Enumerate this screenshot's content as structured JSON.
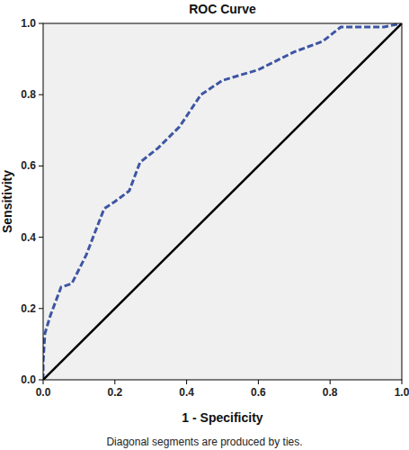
{
  "chart_data": {
    "type": "line",
    "title": "ROC Curve",
    "x_label": "1 - Specificity",
    "y_label": "Sensitivity",
    "note": "Diagonal segments are produced by ties.",
    "xlim": [
      0,
      1
    ],
    "ylim": [
      0,
      1
    ],
    "xticks": [
      {
        "value": 0,
        "label": "0.0"
      },
      {
        "value": 0.2,
        "label": "0.2"
      },
      {
        "value": 0.4,
        "label": "0.4"
      },
      {
        "value": 0.6,
        "label": "0.6"
      },
      {
        "value": 0.8,
        "label": "0.8"
      },
      {
        "value": 1,
        "label": "1.0"
      }
    ],
    "yticks": [
      {
        "value": 0,
        "label": "0.0"
      },
      {
        "value": 0.2,
        "label": "0.2"
      },
      {
        "value": 0.4,
        "label": "0.4"
      },
      {
        "value": 0.6,
        "label": "0.6"
      },
      {
        "value": 0.8,
        "label": "0.8"
      },
      {
        "value": 1,
        "label": "1.0"
      }
    ],
    "grid": false,
    "series": [
      {
        "x": [
          0,
          0,
          0.005,
          0.02,
          0.05,
          0.08,
          0.12,
          0.17,
          0.2,
          0.24,
          0.27,
          0.32,
          0.38,
          0.44,
          0.5,
          0.6,
          0.7,
          0.78,
          0.83,
          0.9,
          0.95,
          1
        ],
        "values": [
          0,
          0.05,
          0.13,
          0.18,
          0.26,
          0.27,
          0.35,
          0.48,
          0.5,
          0.53,
          0.61,
          0.65,
          0.71,
          0.8,
          0.84,
          0.87,
          0.92,
          0.95,
          0.99,
          0.99,
          0.99,
          1
        ],
        "color": "#3d55a3",
        "line_style": "dashed"
      },
      {
        "x": [
          0,
          1
        ],
        "values": [
          0,
          1
        ],
        "color": "#000000",
        "line_style": "solid"
      }
    ]
  }
}
